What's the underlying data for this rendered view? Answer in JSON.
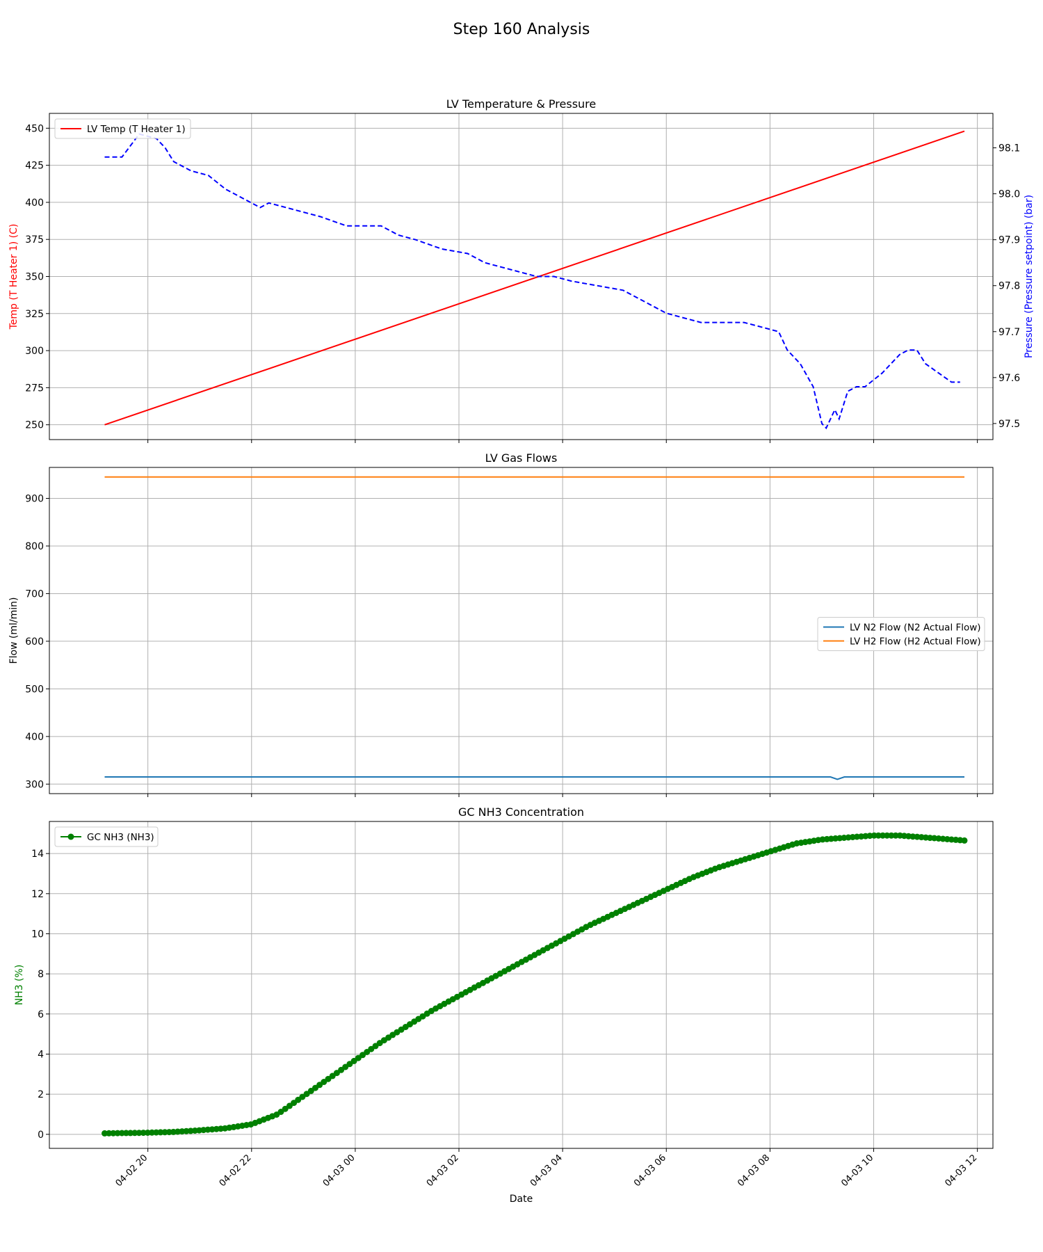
{
  "figure": {
    "title": "Step 160 Analysis"
  },
  "colors": {
    "temp": "#ff0000",
    "pressure": "#0000ff",
    "n2": "#1f77b4",
    "h2": "#ff7f0e",
    "nh3": "#008000",
    "grid": "#b0b0b0"
  },
  "x_axis": {
    "label": "Date",
    "ticks": [
      "04-02 20",
      "04-02 22",
      "04-03 00",
      "04-03 02",
      "04-03 04",
      "04-03 06",
      "04-03 08",
      "04-03 10",
      "04-03 12"
    ],
    "range_hours_from_0402_2000": [
      -1.9,
      16.3
    ]
  },
  "chart_data": [
    {
      "type": "line",
      "title": "LV Temperature & Pressure",
      "x_time_range": [
        "04-02 19:10",
        "04-03 11:45"
      ],
      "left_axis": {
        "label": "Temp (T Heater 1) (C)",
        "ylim": [
          240,
          460
        ],
        "ticks": [
          250,
          275,
          300,
          325,
          350,
          375,
          400,
          425,
          450
        ]
      },
      "right_axis": {
        "label": "Pressure (Pressure setpoint) (bar)",
        "ylim": [
          97.465,
          98.175
        ],
        "ticks": [
          "97.5",
          "97.6",
          "97.7",
          "97.8",
          "97.9",
          "98.0",
          "98.1"
        ]
      },
      "legend": {
        "position": "upper-left",
        "entries": [
          "LV Temp (T Heater 1)"
        ]
      },
      "grid": true,
      "series": [
        {
          "name": "LV Temp (T Heater 1)",
          "axis": "left",
          "style": "solid",
          "x": [
            "04-02 19:10",
            "04-03 11:45"
          ],
          "y": [
            250,
            448
          ]
        },
        {
          "axis": "right",
          "style": "dashed",
          "x": [
            "04-02 19:10",
            "04-02 19:30",
            "04-02 19:50",
            "04-02 20:10",
            "04-02 20:20",
            "04-02 20:30",
            "04-02 20:50",
            "04-02 21:10",
            "04-02 21:30",
            "04-02 21:50",
            "04-02 22:10",
            "04-02 22:20",
            "04-02 22:40",
            "04-02 23:00",
            "04-02 23:20",
            "04-02 23:50",
            "04-03 00:10",
            "04-03 00:30",
            "04-03 00:50",
            "04-03 01:10",
            "04-03 01:40",
            "04-03 02:10",
            "04-03 02:30",
            "04-03 02:50",
            "04-03 03:30",
            "04-03 03:50",
            "04-03 04:10",
            "04-03 04:40",
            "04-03 05:10",
            "04-03 05:40",
            "04-03 06:00",
            "04-03 06:20",
            "04-03 06:40",
            "04-03 07:00",
            "04-03 07:30",
            "04-03 07:50",
            "04-03 08:10",
            "04-03 08:20",
            "04-03 08:35",
            "04-03 08:50",
            "04-03 09:00",
            "04-03 09:05",
            "04-03 09:15",
            "04-03 09:20",
            "04-03 09:30",
            "04-03 09:40",
            "04-03 09:50",
            "04-03 10:10",
            "04-03 10:30",
            "04-03 10:40",
            "04-03 10:50",
            "04-03 11:00",
            "04-03 11:15",
            "04-03 11:30",
            "04-03 11:40"
          ],
          "y": [
            98.08,
            98.08,
            98.13,
            98.12,
            98.1,
            98.07,
            98.05,
            98.04,
            98.01,
            97.99,
            97.97,
            97.98,
            97.97,
            97.96,
            97.95,
            97.93,
            97.93,
            97.93,
            97.91,
            97.9,
            97.88,
            97.87,
            97.85,
            97.84,
            97.82,
            97.82,
            97.81,
            97.8,
            97.79,
            97.76,
            97.74,
            97.73,
            97.72,
            97.72,
            97.72,
            97.71,
            97.7,
            97.66,
            97.63,
            97.58,
            97.5,
            97.49,
            97.53,
            97.51,
            97.57,
            97.58,
            97.58,
            97.61,
            97.65,
            97.66,
            97.66,
            97.63,
            97.61,
            97.59,
            97.59
          ]
        }
      ]
    },
    {
      "type": "line",
      "title": "LV Gas Flows",
      "x_time_range": [
        "04-02 19:10",
        "04-03 11:45"
      ],
      "ylabel": "Flow (ml/min)",
      "ylim": [
        280,
        965
      ],
      "yticks": [
        300,
        400,
        500,
        600,
        700,
        800,
        900
      ],
      "legend": {
        "position": "center-right",
        "entries": [
          "LV N2 Flow (N2 Actual Flow)",
          "LV H2 Flow (H2 Actual Flow)"
        ]
      },
      "grid": true,
      "series": [
        {
          "name": "LV N2 Flow (N2 Actual Flow)",
          "x": [
            "04-02 19:10",
            "04-03 09:10",
            "04-03 09:18",
            "04-03 09:26",
            "04-03 11:45"
          ],
          "y": [
            315,
            315,
            310,
            315,
            315
          ]
        },
        {
          "name": "LV H2 Flow (H2 Actual Flow)",
          "x": [
            "04-02 19:10",
            "04-03 11:45"
          ],
          "y": [
            945,
            945
          ]
        }
      ]
    },
    {
      "type": "line",
      "title": "GC NH3 Concentration",
      "x_time_range": [
        "04-02 19:10",
        "04-03 11:45"
      ],
      "ylabel": "NH3 (%)",
      "ylim": [
        -0.7,
        15.6
      ],
      "yticks": [
        0,
        2,
        4,
        6,
        8,
        10,
        12,
        14
      ],
      "legend": {
        "position": "upper-left",
        "entries": [
          "GC NH3 (NH3)"
        ]
      },
      "grid": true,
      "markers": "circle",
      "series": [
        {
          "name": "GC NH3 (NH3)",
          "x": [
            "04-02 19:10",
            "04-02 20:00",
            "04-02 20:30",
            "04-02 21:00",
            "04-02 21:30",
            "04-02 22:00",
            "04-02 22:30",
            "04-02 23:00",
            "04-02 23:30",
            "04-03 00:00",
            "04-03 00:30",
            "04-03 01:00",
            "04-03 01:30",
            "04-03 02:00",
            "04-03 02:30",
            "04-03 03:00",
            "04-03 03:30",
            "04-03 04:00",
            "04-03 04:30",
            "04-03 05:00",
            "04-03 05:30",
            "04-03 06:00",
            "04-03 06:30",
            "04-03 07:00",
            "04-03 07:30",
            "04-03 08:00",
            "04-03 08:30",
            "04-03 09:00",
            "04-03 09:30",
            "04-03 10:00",
            "04-03 10:30",
            "04-03 11:00",
            "04-03 11:45"
          ],
          "y": [
            0.05,
            0.08,
            0.12,
            0.2,
            0.3,
            0.5,
            1.0,
            1.9,
            2.8,
            3.7,
            4.6,
            5.4,
            6.2,
            6.9,
            7.6,
            8.3,
            9.0,
            9.7,
            10.4,
            11.0,
            11.6,
            12.2,
            12.8,
            13.3,
            13.7,
            14.1,
            14.5,
            14.7,
            14.8,
            14.9,
            14.9,
            14.8,
            14.65
          ]
        }
      ]
    }
  ]
}
